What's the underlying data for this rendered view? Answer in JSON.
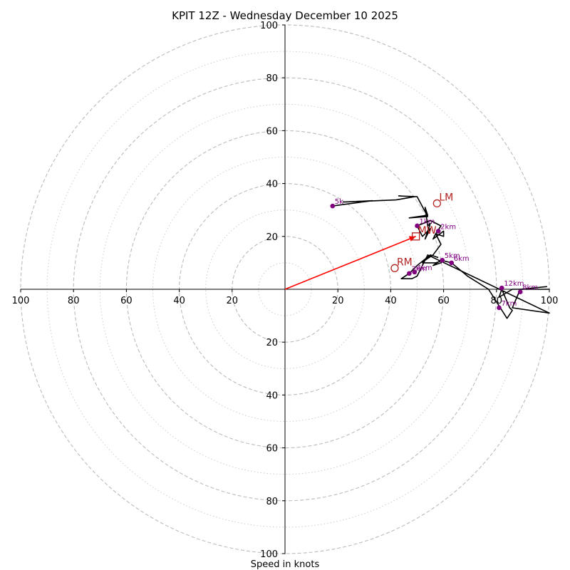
{
  "chart_data": {
    "type": "hodograph",
    "title": "KPIT 12Z - Wednesday December 10 2025",
    "xlabel": "Speed in knots",
    "units": "knots",
    "range": [
      -100,
      100
    ],
    "rings_major": [
      20,
      40,
      60,
      80,
      100
    ],
    "rings_minor": [
      10,
      30,
      50,
      70,
      90
    ],
    "tick_labels": {
      "x_negative": [
        "100",
        "80",
        "60",
        "40",
        "20"
      ],
      "x_positive": [
        "20",
        "40",
        "60",
        "80",
        "100"
      ],
      "y_positive": [
        "20",
        "40",
        "60",
        "80",
        "100"
      ],
      "y_negative": [
        "20",
        "40",
        "60",
        "80",
        "100"
      ]
    },
    "colors": {
      "profile": "#000000",
      "markers": "#800080",
      "motion": "#b22222",
      "shear_vector": "#ff0000",
      "grid": "#bbbbbb"
    },
    "profile": [
      [
        18,
        31.5
      ],
      [
        33,
        33.5
      ],
      [
        22,
        33
      ],
      [
        42,
        33.8
      ],
      [
        49,
        35
      ],
      [
        43,
        35.3
      ],
      [
        50,
        35
      ],
      [
        54,
        27.5
      ],
      [
        47,
        27
      ],
      [
        54,
        28
      ],
      [
        53,
        31
      ],
      [
        54,
        24
      ],
      [
        55,
        25
      ],
      [
        53,
        19
      ],
      [
        55,
        23
      ],
      [
        52,
        20
      ],
      [
        50,
        24
      ],
      [
        55,
        26
      ],
      [
        59,
        24
      ],
      [
        57,
        21
      ],
      [
        56,
        19
      ],
      [
        60,
        22
      ],
      [
        60,
        20
      ],
      [
        57,
        21
      ],
      [
        59,
        17
      ],
      [
        56,
        13
      ],
      [
        53,
        11
      ],
      [
        55,
        13
      ],
      [
        52,
        10
      ],
      [
        57,
        10
      ],
      [
        60,
        11
      ],
      [
        59,
        10
      ],
      [
        56,
        9
      ],
      [
        59,
        11
      ],
      [
        63,
        10
      ],
      [
        69,
        5
      ],
      [
        77,
        0
      ],
      [
        84,
        -11
      ],
      [
        86,
        -8
      ],
      [
        85,
        -7
      ],
      [
        82,
        0
      ],
      [
        81,
        -3
      ],
      [
        86,
        0
      ],
      [
        100,
        0
      ],
      [
        89,
        0
      ],
      [
        99,
        1
      ],
      [
        89,
        0
      ],
      [
        86,
        -7
      ],
      [
        100,
        -9
      ],
      [
        54,
        13
      ],
      [
        53,
        11
      ],
      [
        50,
        5
      ],
      [
        48,
        4
      ],
      [
        44,
        4
      ],
      [
        47,
        6
      ],
      [
        50,
        9
      ],
      [
        55,
        13
      ],
      [
        58,
        12
      ]
    ],
    "height_markers": [
      {
        "label": "1km",
        "u": 50,
        "v": 24
      },
      {
        "label": "2km",
        "u": 58,
        "v": 22
      },
      {
        "label": "3km",
        "u": 47,
        "v": 6
      },
      {
        "label": "4km",
        "u": 49,
        "v": 6.5
      },
      {
        "label": "5km",
        "u": 59.5,
        "v": 11
      },
      {
        "label": "6km",
        "u": 63,
        "v": 10
      },
      {
        "label": "7km",
        "u": 81,
        "v": -7
      },
      {
        "label": "8km",
        "u": 89,
        "v": -1
      },
      {
        "label": "12km",
        "u": 82,
        "v": 0.5
      },
      {
        "label": "5k",
        "u": 18,
        "v": 31.5
      }
    ],
    "storm_motion": [
      {
        "label": "LM",
        "u": 57.5,
        "v": 32.5,
        "marker": "circle"
      },
      {
        "label": "RM",
        "u": 41.5,
        "v": 8,
        "marker": "circle"
      },
      {
        "label": "MW",
        "u": 49.5,
        "v": 20,
        "marker": "square"
      }
    ],
    "shear_vector": {
      "from": [
        0,
        0
      ],
      "to": [
        49.5,
        20
      ]
    }
  }
}
